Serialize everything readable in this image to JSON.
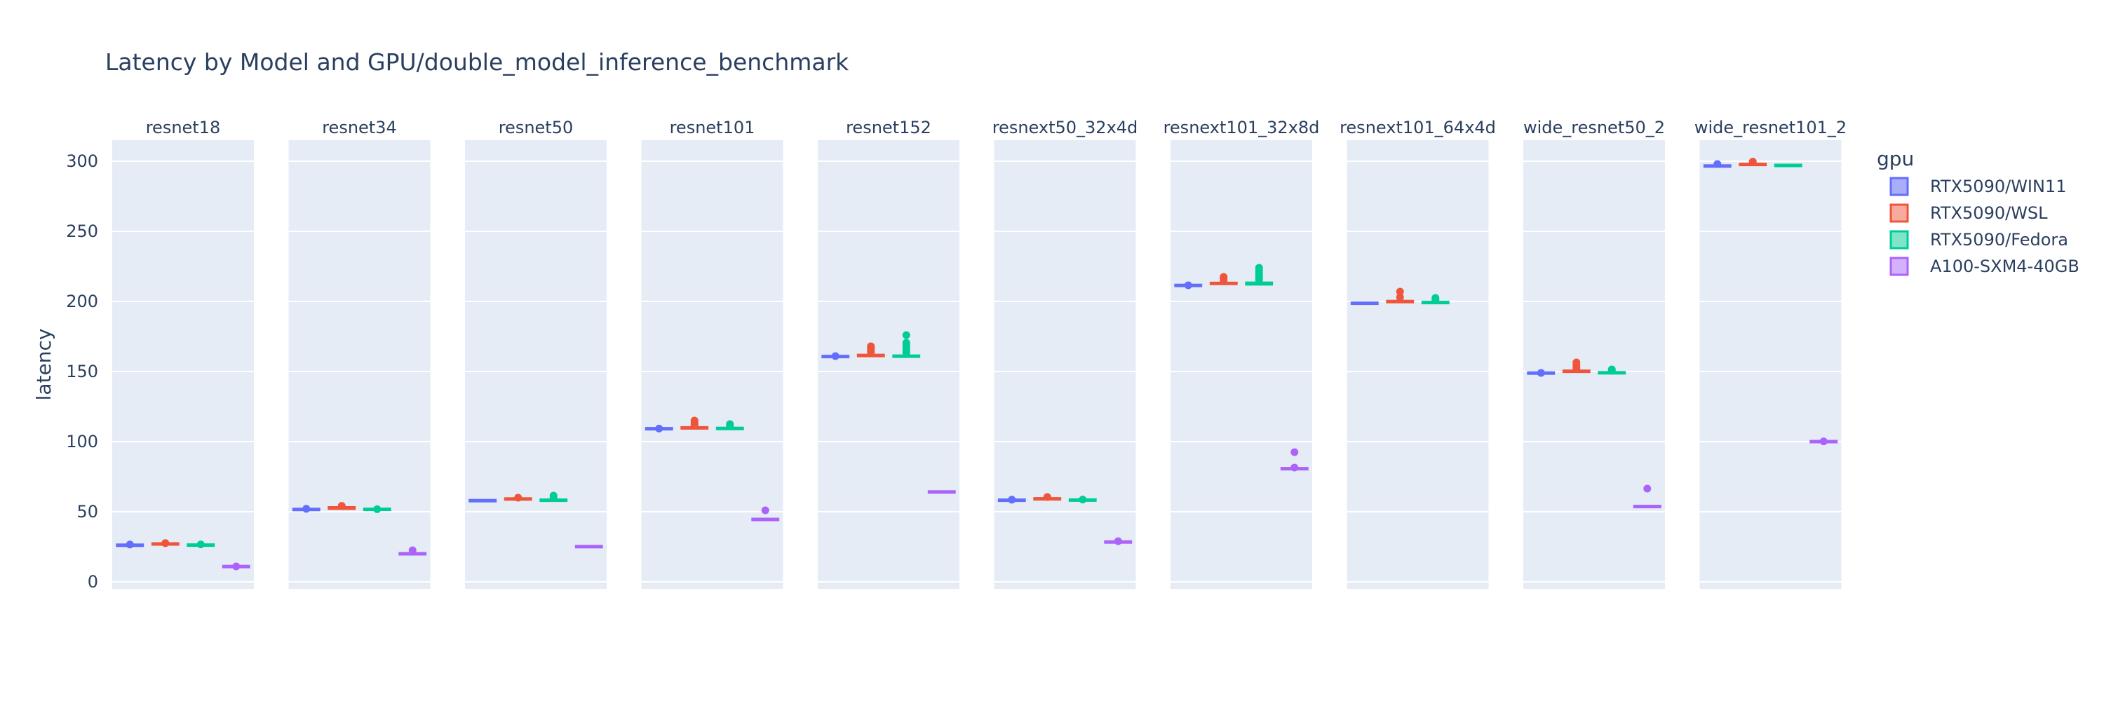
{
  "chart_data": {
    "type": "box",
    "title": "Latency by Model and GPU/double_model_inference_benchmark",
    "ylabel": "latency",
    "xlabel": "",
    "ylim": [
      -5,
      315
    ],
    "yticks": [
      0,
      50,
      100,
      150,
      200,
      250,
      300
    ],
    "grid": true,
    "legend_placement": "right",
    "legend_title": "gpu",
    "facet_by": "model",
    "facets": [
      "resnet18",
      "resnet34",
      "resnet50",
      "resnet101",
      "resnet152",
      "resnext50_32x4d",
      "resnext101_32x8d",
      "resnext101_64x4d",
      "wide_resnet50_2",
      "wide_resnet101_2"
    ],
    "series": [
      {
        "name": "RTX5090/WIN11",
        "color": "#636efa",
        "fill": "#a8aefc",
        "boxes": [
          {
            "q1": 25.7,
            "median": 26.1,
            "q3": 26.5,
            "outliers": [
              26.6
            ]
          },
          {
            "q1": 51.2,
            "median": 51.6,
            "q3": 52.0,
            "outliers": [
              52.1
            ]
          },
          {
            "q1": 57.6,
            "median": 57.9,
            "q3": 58.2,
            "outliers": []
          },
          {
            "q1": 108.8,
            "median": 109.2,
            "q3": 109.7,
            "outliers": [
              109.3
            ]
          },
          {
            "q1": 160.2,
            "median": 160.7,
            "q3": 161.1,
            "outliers": [
              161.0
            ]
          },
          {
            "q1": 57.8,
            "median": 58.2,
            "q3": 58.6,
            "outliers": [
              58.6
            ]
          },
          {
            "q1": 211.0,
            "median": 211.4,
            "q3": 211.8,
            "outliers": [
              211.5
            ]
          },
          {
            "q1": 198.4,
            "median": 198.7,
            "q3": 199.0,
            "outliers": []
          },
          {
            "q1": 148.5,
            "median": 148.9,
            "q3": 149.3,
            "outliers": [
              149.0
            ]
          },
          {
            "q1": 296.2,
            "median": 296.6,
            "q3": 297.0,
            "outliers": [
              298.0
            ]
          }
        ]
      },
      {
        "name": "RTX5090/WSL",
        "color": "#ef553b",
        "fill": "#f7aa9d",
        "boxes": [
          {
            "q1": 26.5,
            "median": 27.0,
            "q3": 27.5,
            "outliers": [
              27.6
            ]
          },
          {
            "q1": 51.8,
            "median": 52.6,
            "q3": 53.5,
            "outliers": [
              54.2
            ]
          },
          {
            "q1": 58.6,
            "median": 59.1,
            "q3": 59.8,
            "outliers": [
              60.0
            ]
          },
          {
            "q1": 109.3,
            "median": 109.8,
            "q3": 110.4,
            "outliers": [
              112.0,
              113.5,
              115.0
            ]
          },
          {
            "q1": 160.7,
            "median": 161.4,
            "q3": 162.2,
            "outliers": [
              164.0,
              165.5,
              166.8,
              168.0
            ]
          },
          {
            "q1": 58.6,
            "median": 59.2,
            "q3": 59.9,
            "outliers": [
              60.5
            ]
          },
          {
            "q1": 212.2,
            "median": 212.8,
            "q3": 213.6,
            "outliers": [
              215.0,
              216.5,
              217.5
            ]
          },
          {
            "q1": 199.3,
            "median": 199.9,
            "q3": 200.6,
            "outliers": [
              203.0,
              207.0
            ]
          },
          {
            "q1": 149.6,
            "median": 150.2,
            "q3": 150.9,
            "outliers": [
              152.5,
              154.5,
              156.5
            ]
          },
          {
            "q1": 297.2,
            "median": 297.7,
            "q3": 298.3,
            "outliers": [
              299.7
            ]
          }
        ]
      },
      {
        "name": "RTX5090/Fedora",
        "color": "#00cc96",
        "fill": "#7fe5ca",
        "boxes": [
          {
            "q1": 25.8,
            "median": 26.2,
            "q3": 26.6,
            "outliers": [
              26.7
            ]
          },
          {
            "q1": 51.3,
            "median": 51.7,
            "q3": 52.1,
            "outliers": [
              51.8
            ]
          },
          {
            "q1": 57.7,
            "median": 58.2,
            "q3": 58.8,
            "outliers": [
              60.0,
              61.5
            ]
          },
          {
            "q1": 108.9,
            "median": 109.4,
            "q3": 110.0,
            "outliers": [
              111.0,
              112.5
            ]
          },
          {
            "q1": 160.3,
            "median": 160.9,
            "q3": 161.7,
            "outliers": [
              163.5,
              165.0,
              167.0,
              168.5,
              170.5,
              176.0
            ]
          },
          {
            "q1": 57.9,
            "median": 58.3,
            "q3": 58.8,
            "outliers": [
              58.7
            ]
          },
          {
            "q1": 211.8,
            "median": 212.6,
            "q3": 213.7,
            "outliers": [
              215.5,
              217.0,
              218.5,
              220.0,
              222.0,
              224.0
            ]
          },
          {
            "q1": 198.8,
            "median": 199.2,
            "q3": 199.8,
            "outliers": [
              201.0,
              202.5
            ]
          },
          {
            "q1": 148.6,
            "median": 149.1,
            "q3": 149.6,
            "outliers": [
              150.6,
              151.5
            ]
          },
          {
            "q1": 296.6,
            "median": 297.0,
            "q3": 297.4,
            "outliers": []
          }
        ]
      },
      {
        "name": "A100-SXM4-40GB",
        "color": "#ab63fa",
        "fill": "#d5b1fc",
        "boxes": [
          {
            "q1": 10.5,
            "median": 10.9,
            "q3": 11.3,
            "outliers": [
              11.0
            ]
          },
          {
            "q1": 19.6,
            "median": 20.0,
            "q3": 20.4,
            "outliers": [
              22.5
            ]
          },
          {
            "q1": 24.8,
            "median": 25.1,
            "q3": 25.4,
            "outliers": []
          },
          {
            "q1": 44.2,
            "median": 44.5,
            "q3": 44.8,
            "outliers": [
              51.0
            ]
          },
          {
            "q1": 63.8,
            "median": 64.1,
            "q3": 64.4,
            "outliers": []
          },
          {
            "q1": 28.0,
            "median": 28.4,
            "q3": 28.8,
            "outliers": [
              29.0
            ]
          },
          {
            "q1": 80.3,
            "median": 80.7,
            "q3": 81.1,
            "outliers": [
              81.5,
              92.5
            ]
          },
          null,
          {
            "q1": 53.4,
            "median": 53.7,
            "q3": 54.0,
            "outliers": [
              66.5
            ]
          },
          {
            "q1": 99.6,
            "median": 100.0,
            "q3": 100.4,
            "outliers": [
              100.2
            ]
          }
        ]
      }
    ]
  }
}
